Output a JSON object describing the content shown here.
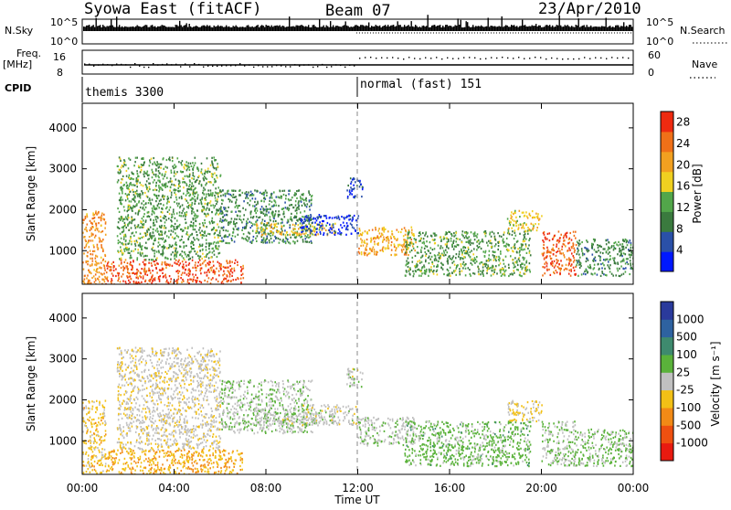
{
  "header": {
    "station": "Syowa East (fitACF)",
    "beam": "Beam 07",
    "date": "23/Apr/2010"
  },
  "strip_labels": {
    "nsky": "N.Sky",
    "nsearch": "N.Search",
    "nsky_ticks": [
      "10^5",
      "10^0"
    ],
    "nsearch_ticks": [
      "10^5",
      "10^0"
    ],
    "freq": "Freq.",
    "freq_unit": "[MHz]",
    "freq_ticks": [
      "16",
      "8"
    ],
    "nave": "Nave",
    "nave_ticks": [
      "60",
      "0"
    ],
    "cpid": "CPID"
  },
  "cpid_segments": [
    {
      "label": "themis 3300",
      "start": "00:00",
      "end": "12:00"
    },
    {
      "label": "normal (fast) 151",
      "start": "12:00",
      "end": "24:00"
    }
  ],
  "panels": {
    "power": {
      "ylabel": "Slant Range [km]",
      "yticks": [
        "1000",
        "2000",
        "3000",
        "4000"
      ],
      "cbar_label": "Power [dB]",
      "cbar_ticks": [
        "4",
        "8",
        "12",
        "16",
        "20",
        "24",
        "28"
      ],
      "cbar_colors": [
        "#0018ff",
        "#2a50a8",
        "#3a7a3e",
        "#52a64a",
        "#f0d020",
        "#f2a020",
        "#f07018",
        "#ee2a10"
      ]
    },
    "velocity": {
      "ylabel": "Slant Range [km]",
      "yticks": [
        "1000",
        "2000",
        "3000",
        "4000"
      ],
      "cbar_label": "Velocity [m s⁻¹]",
      "cbar_ticks": [
        "1000",
        "500",
        "100",
        "25",
        "-25",
        "-100",
        "-500",
        "-1000"
      ],
      "cbar_colors": [
        "#2a3a9c",
        "#2e62a0",
        "#3e8a6e",
        "#5ab23a",
        "#c0c0c0",
        "#f2c016",
        "#f28a16",
        "#ee5010",
        "#e81a10"
      ]
    }
  },
  "xaxis": {
    "ticks": [
      "00:00",
      "04:00",
      "08:00",
      "12:00",
      "16:00",
      "20:00",
      "00:00"
    ],
    "label": "Time UT"
  },
  "chart_data": {
    "type": "heatmap",
    "title": "Syowa East (fitACF)  Beam 07  23/Apr/2010",
    "xlabel": "Time UT",
    "ylabel": "Slant Range [km]",
    "xlim": [
      0,
      24
    ],
    "ylim": [
      180,
      4600
    ],
    "panels": [
      "Power [dB]",
      "Velocity [m s⁻¹]"
    ],
    "power_scale": [
      0,
      30
    ],
    "velocity_scale": [
      -1000,
      1000
    ],
    "scatter_regions": [
      {
        "time": [
          0.0,
          1.0
        ],
        "range": [
          200,
          2000
        ],
        "power_db": 22,
        "velocity": -200
      },
      {
        "time": [
          1.0,
          7.0
        ],
        "range": [
          200,
          800
        ],
        "power_db": 26,
        "velocity": -300
      },
      {
        "time": [
          1.5,
          6.0
        ],
        "range": [
          800,
          3300
        ],
        "power_db": 12,
        "velocity": -50
      },
      {
        "time": [
          6.0,
          10.0
        ],
        "range": [
          1200,
          2500
        ],
        "power_db": 10,
        "velocity": 80
      },
      {
        "time": [
          7.5,
          11.0
        ],
        "range": [
          1400,
          1700
        ],
        "power_db": 18,
        "velocity": 20
      },
      {
        "time": [
          9.5,
          12.0
        ],
        "range": [
          1400,
          1900
        ],
        "power_db": 4,
        "velocity": 0
      },
      {
        "time": [
          11.5,
          12.2
        ],
        "range": [
          2300,
          2800
        ],
        "power_db": 6,
        "velocity": 25
      },
      {
        "time": [
          12.0,
          14.5
        ],
        "range": [
          900,
          1600
        ],
        "power_db": 20,
        "velocity": 50
      },
      {
        "time": [
          14.0,
          19.5
        ],
        "range": [
          400,
          1500
        ],
        "power_db": 12,
        "velocity": 200
      },
      {
        "time": [
          18.5,
          20.0
        ],
        "range": [
          1500,
          2000
        ],
        "power_db": 18,
        "velocity": -100
      },
      {
        "time": [
          20.0,
          21.5
        ],
        "range": [
          400,
          1500
        ],
        "power_db": 26,
        "velocity": 100
      },
      {
        "time": [
          21.5,
          24.0
        ],
        "range": [
          400,
          1300
        ],
        "power_db": 10,
        "velocity": 150
      }
    ]
  }
}
